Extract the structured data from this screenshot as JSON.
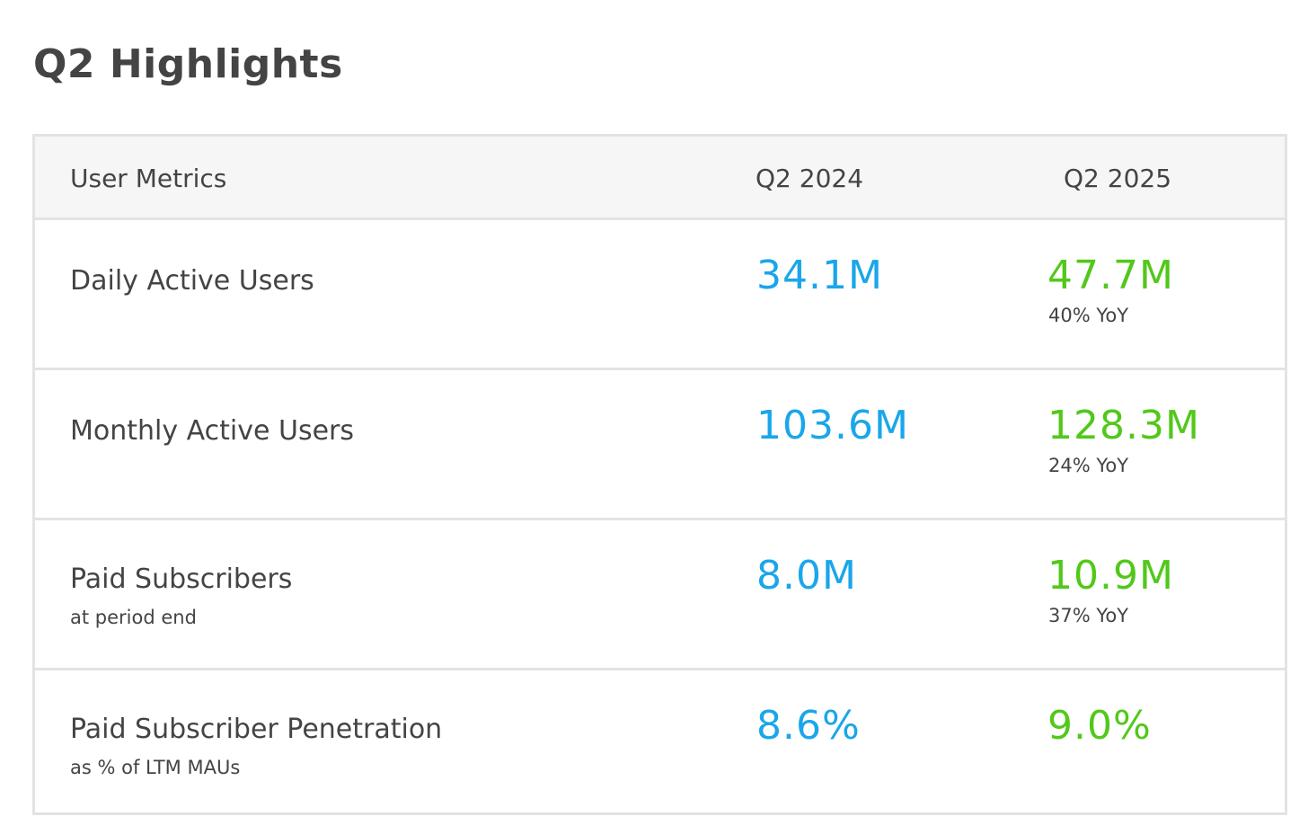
{
  "title": "Q2 Highlights",
  "table": {
    "headers": {
      "metric": "User Metrics",
      "prev": "Q2 2024",
      "curr": "Q2 2025"
    },
    "rows": [
      {
        "metric": "Daily Active Users",
        "sub": "",
        "prev": "34.1M",
        "curr": "47.7M",
        "yoy": "40% YoY"
      },
      {
        "metric": "Monthly Active Users",
        "sub": "",
        "prev": "103.6M",
        "curr": "128.3M",
        "yoy": "24% YoY"
      },
      {
        "metric": "Paid Subscribers",
        "sub": "at period end",
        "prev": "8.0M",
        "curr": "10.9M",
        "yoy": "37% YoY"
      },
      {
        "metric": "Paid Subscriber Penetration",
        "sub": "as % of LTM MAUs",
        "prev": "8.6%",
        "curr": "9.0%",
        "yoy": ""
      }
    ]
  },
  "colors": {
    "prev_value": "#1aa6ea",
    "curr_value": "#52c81a",
    "text": "#444444",
    "border": "#e3e3e3",
    "header_bg": "#f6f6f6"
  }
}
